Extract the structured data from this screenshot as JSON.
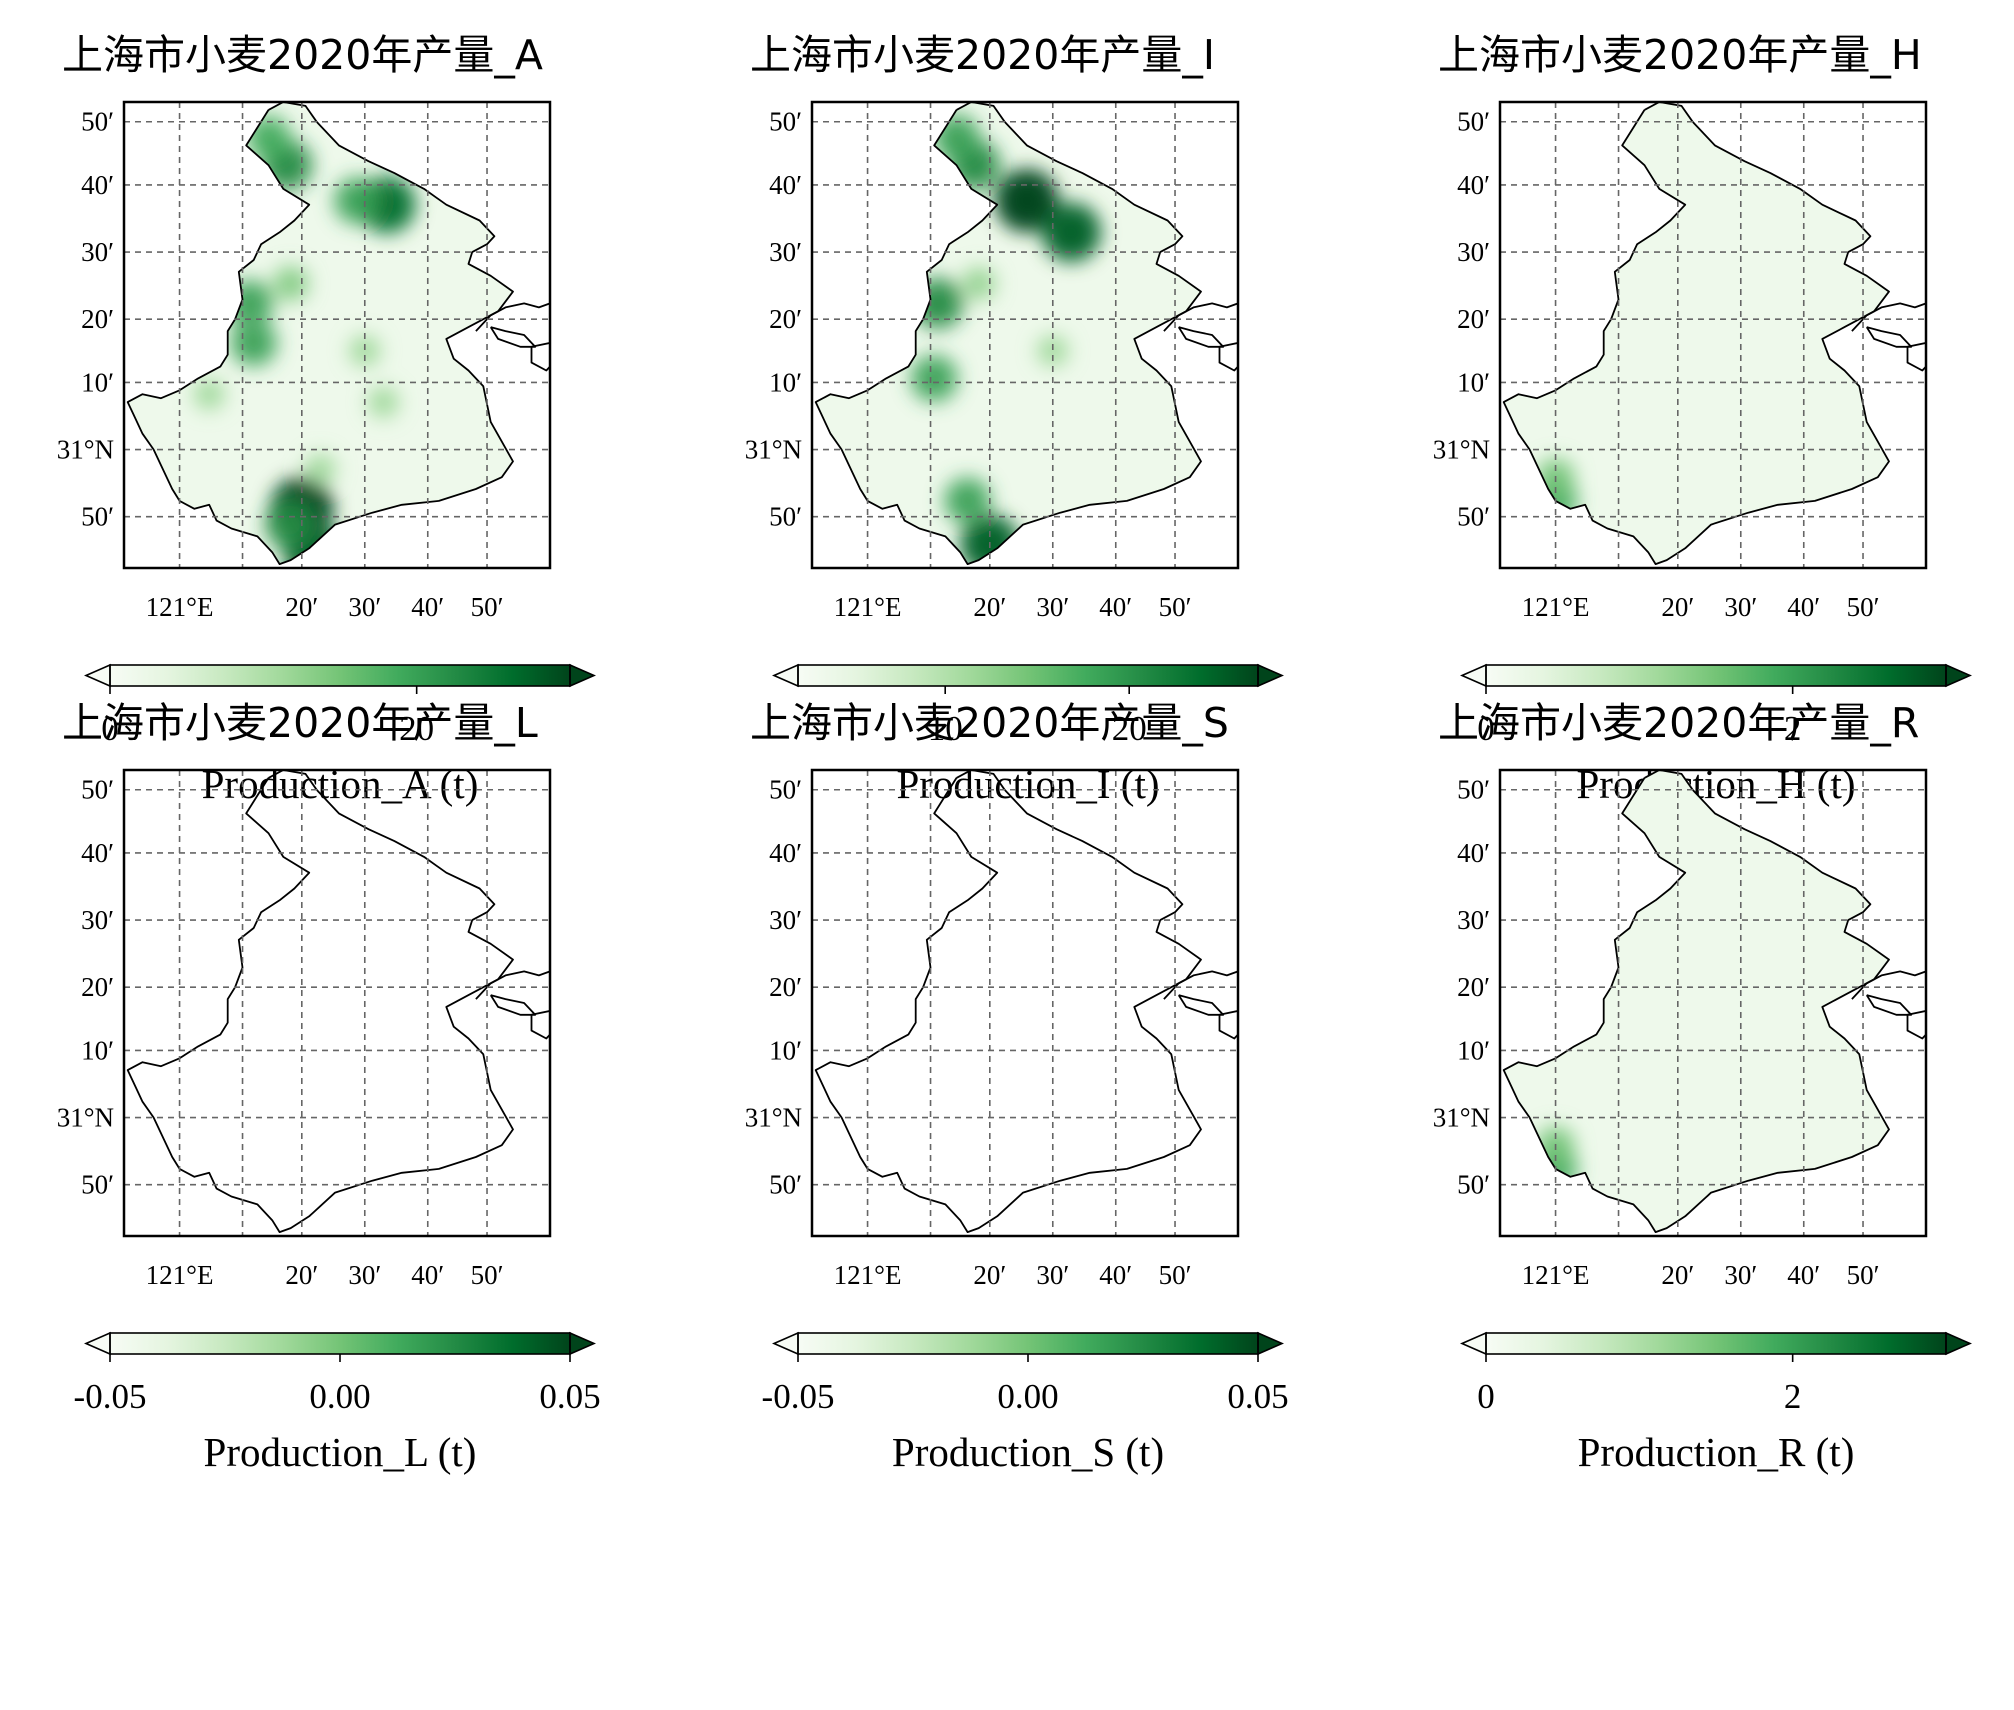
{
  "figure": {
    "panels": [
      {
        "id": "A",
        "title": "上海市小麦2020年产量_A",
        "cb_label": "Production_A (t)",
        "cb_ticks": [
          "0",
          "20"
        ],
        "cb_tick_vals": [
          0,
          20
        ],
        "cb_range": [
          0,
          30
        ],
        "blobs": [
          [
            121.36,
            30.74,
            0.9
          ],
          [
            121.33,
            30.85,
            1.0
          ],
          [
            121.56,
            31.62,
            0.85
          ],
          [
            121.29,
            31.72,
            0.7
          ],
          [
            121.19,
            31.37,
            0.6
          ],
          [
            121.2,
            31.27,
            0.6
          ],
          [
            121.48,
            31.63,
            0.6
          ],
          [
            121.3,
            31.42,
            0.35
          ],
          [
            121.3,
            30.81,
            0.7
          ],
          [
            121.38,
            30.95,
            0.25
          ],
          [
            121.55,
            31.12,
            0.25
          ],
          [
            121.5,
            31.25,
            0.25
          ],
          [
            121.24,
            31.79,
            0.55
          ],
          [
            121.08,
            31.14,
            0.25
          ]
        ]
      },
      {
        "id": "I",
        "title": "上海市小麦2020年产量_I",
        "cb_label": "Production_I (t)",
        "cb_ticks": [
          "10",
          "20"
        ],
        "cb_tick_vals": [
          10,
          20
        ],
        "cb_range": [
          2,
          27
        ],
        "blobs": [
          [
            121.43,
            31.63,
            1.0
          ],
          [
            121.55,
            31.55,
            0.9
          ],
          [
            121.33,
            30.76,
            0.9
          ],
          [
            121.29,
            31.72,
            0.7
          ],
          [
            121.24,
            31.79,
            0.6
          ],
          [
            121.19,
            31.37,
            0.7
          ],
          [
            121.18,
            31.18,
            0.6
          ],
          [
            121.27,
            30.87,
            0.6
          ],
          [
            121.3,
            31.42,
            0.3
          ],
          [
            121.5,
            31.25,
            0.25
          ]
        ]
      },
      {
        "id": "H",
        "title": "上海市小麦2020年产量_H",
        "cb_label": "Production_H (t)",
        "cb_ticks": [
          "0",
          "2"
        ],
        "cb_tick_vals": [
          0,
          2
        ],
        "cb_range": [
          0,
          3
        ],
        "blobs": [
          [
            121.0,
            30.87,
            0.55
          ],
          [
            121.0,
            30.93,
            0.4
          ]
        ]
      },
      {
        "id": "L",
        "title": "上海市小麦2020年产量_L",
        "cb_label": "Production_L (t)",
        "cb_ticks": [
          "-0.05",
          "0.00",
          "0.05"
        ],
        "cb_tick_vals": [
          -0.05,
          0.0,
          0.05
        ],
        "cb_range": [
          -0.05,
          0.05
        ],
        "blobs": []
      },
      {
        "id": "S",
        "title": "上海市小麦2020年产量_S",
        "cb_label": "Production_S (t)",
        "cb_ticks": [
          "-0.05",
          "0.00",
          "0.05"
        ],
        "cb_tick_vals": [
          -0.05,
          0.0,
          0.05
        ],
        "cb_range": [
          -0.05,
          0.05
        ],
        "blobs": []
      },
      {
        "id": "R",
        "title": "上海市小麦2020年产量_R",
        "cb_label": "Production_R (t)",
        "cb_ticks": [
          "0",
          "2"
        ],
        "cb_tick_vals": [
          0,
          2
        ],
        "cb_range": [
          0,
          3
        ],
        "blobs": [
          [
            121.0,
            30.87,
            0.55
          ],
          [
            121.0,
            30.93,
            0.4
          ]
        ]
      }
    ],
    "lat_ticks": [
      "50′",
      "40′",
      "30′",
      "20′",
      "10′",
      "31°N",
      "50′"
    ],
    "lon_ticks": [
      "121°E",
      "20′",
      "30′",
      "40′",
      "50′"
    ],
    "colormap": [
      "#f7fcf5",
      "#e5f5e0",
      "#c7e9c0",
      "#a1d99b",
      "#74c476",
      "#41ab5d",
      "#238b45",
      "#006d2c",
      "#00441b"
    ]
  }
}
